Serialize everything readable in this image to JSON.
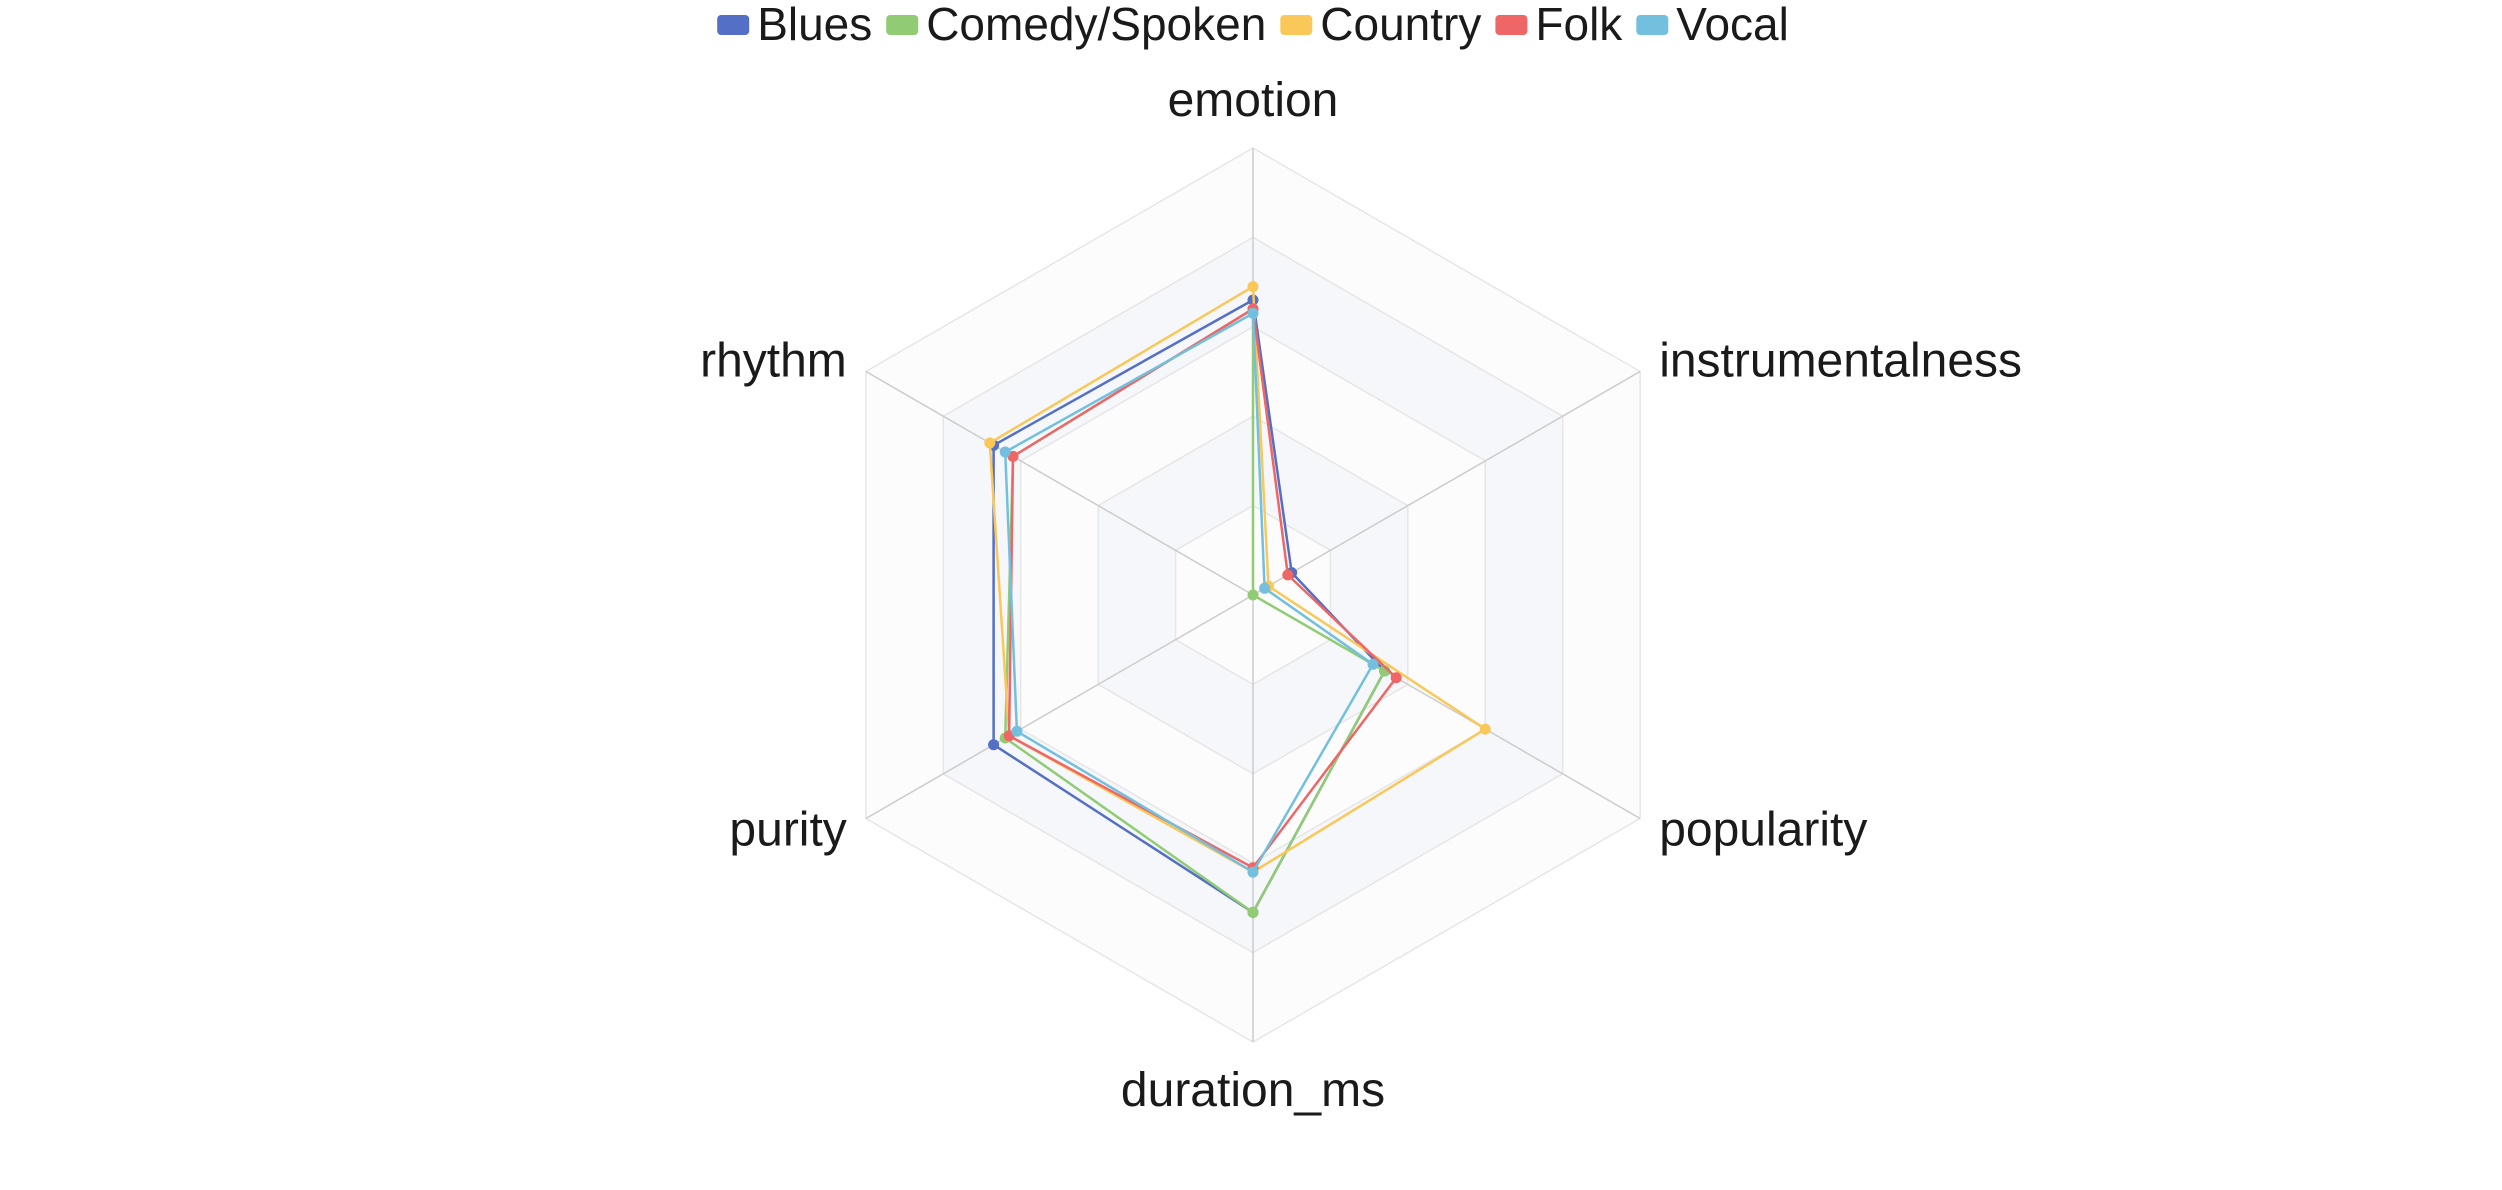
{
  "chart_data": {
    "type": "radar",
    "title": "",
    "indicators": [
      "emotion",
      "instrumentalness",
      "popularity",
      "duration_ms",
      "purity",
      "rhythm"
    ],
    "max": 1,
    "levels": 5,
    "legend_position": "top-center",
    "series": [
      {
        "name": "Blues",
        "color": "#5470c6",
        "values": [
          0.66,
          0.1,
          0.34,
          0.71,
          0.67,
          0.67
        ]
      },
      {
        "name": "Comedy/Spoken",
        "color": "#91cc75",
        "values": [
          0.64,
          0.0,
          0.34,
          0.71,
          0.64,
          0.62
        ]
      },
      {
        "name": "Country",
        "color": "#fac858",
        "values": [
          0.69,
          0.04,
          0.6,
          0.62,
          0.63,
          0.68
        ]
      },
      {
        "name": "Folk",
        "color": "#ee6666",
        "values": [
          0.64,
          0.09,
          0.37,
          0.61,
          0.63,
          0.62
        ]
      },
      {
        "name": "Vocal",
        "color": "#73c0de",
        "values": [
          0.63,
          0.03,
          0.31,
          0.62,
          0.61,
          0.64
        ]
      }
    ]
  }
}
